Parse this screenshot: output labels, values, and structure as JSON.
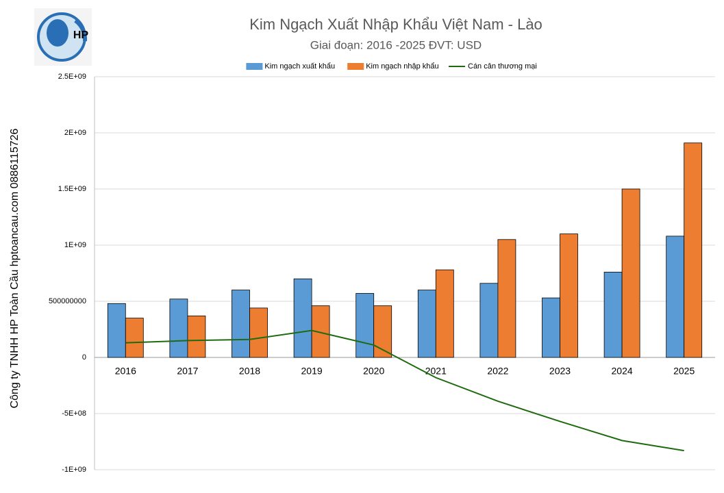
{
  "chart_data": {
    "type": "bar",
    "title": "Kim Ngạch Xuất Nhập Khẩu Việt Nam - Lào",
    "subtitle": "Giai đoạn: 2016 -2025  ĐVT: USD",
    "side_text": "Công ty TNHH HP Toàn Cầu hptoancau.com 0886115726",
    "logo_text": "HP",
    "categories": [
      "2016",
      "2017",
      "2018",
      "2019",
      "2020",
      "2021",
      "2022",
      "2023",
      "2024",
      "2025"
    ],
    "series": [
      {
        "name": "Kim ngạch xuất khẩu",
        "color": "#5b9bd5",
        "kind": "bar",
        "values": [
          480000000,
          520000000,
          600000000,
          700000000,
          570000000,
          600000000,
          660000000,
          530000000,
          760000000,
          1080000000
        ]
      },
      {
        "name": "Kim ngạch nhập khẩu",
        "color": "#ed7d31",
        "kind": "bar",
        "values": [
          350000000,
          370000000,
          440000000,
          460000000,
          460000000,
          780000000,
          1050000000,
          1100000000,
          1500000000,
          1910000000
        ]
      },
      {
        "name": "Cán cân thương mại",
        "color": "#1e6b0f",
        "kind": "line",
        "values": [
          130000000,
          150000000,
          160000000,
          240000000,
          110000000,
          -180000000,
          -390000000,
          -570000000,
          -740000000,
          -830000000
        ]
      }
    ],
    "ylim": [
      -1000000000,
      2500000000
    ],
    "yticks": [
      {
        "value": -1000000000,
        "label": "-1E+09"
      },
      {
        "value": -500000000,
        "label": "-5E+08"
      },
      0,
      500000000,
      {
        "value": 1000000000,
        "label": "1E+09"
      },
      {
        "value": 1500000000,
        "label": "1.5E+09"
      },
      {
        "value": 2000000000,
        "label": "2E+09"
      },
      {
        "value": 2500000000,
        "label": "2.5E+09"
      }
    ],
    "grid": true,
    "legend": "top"
  }
}
